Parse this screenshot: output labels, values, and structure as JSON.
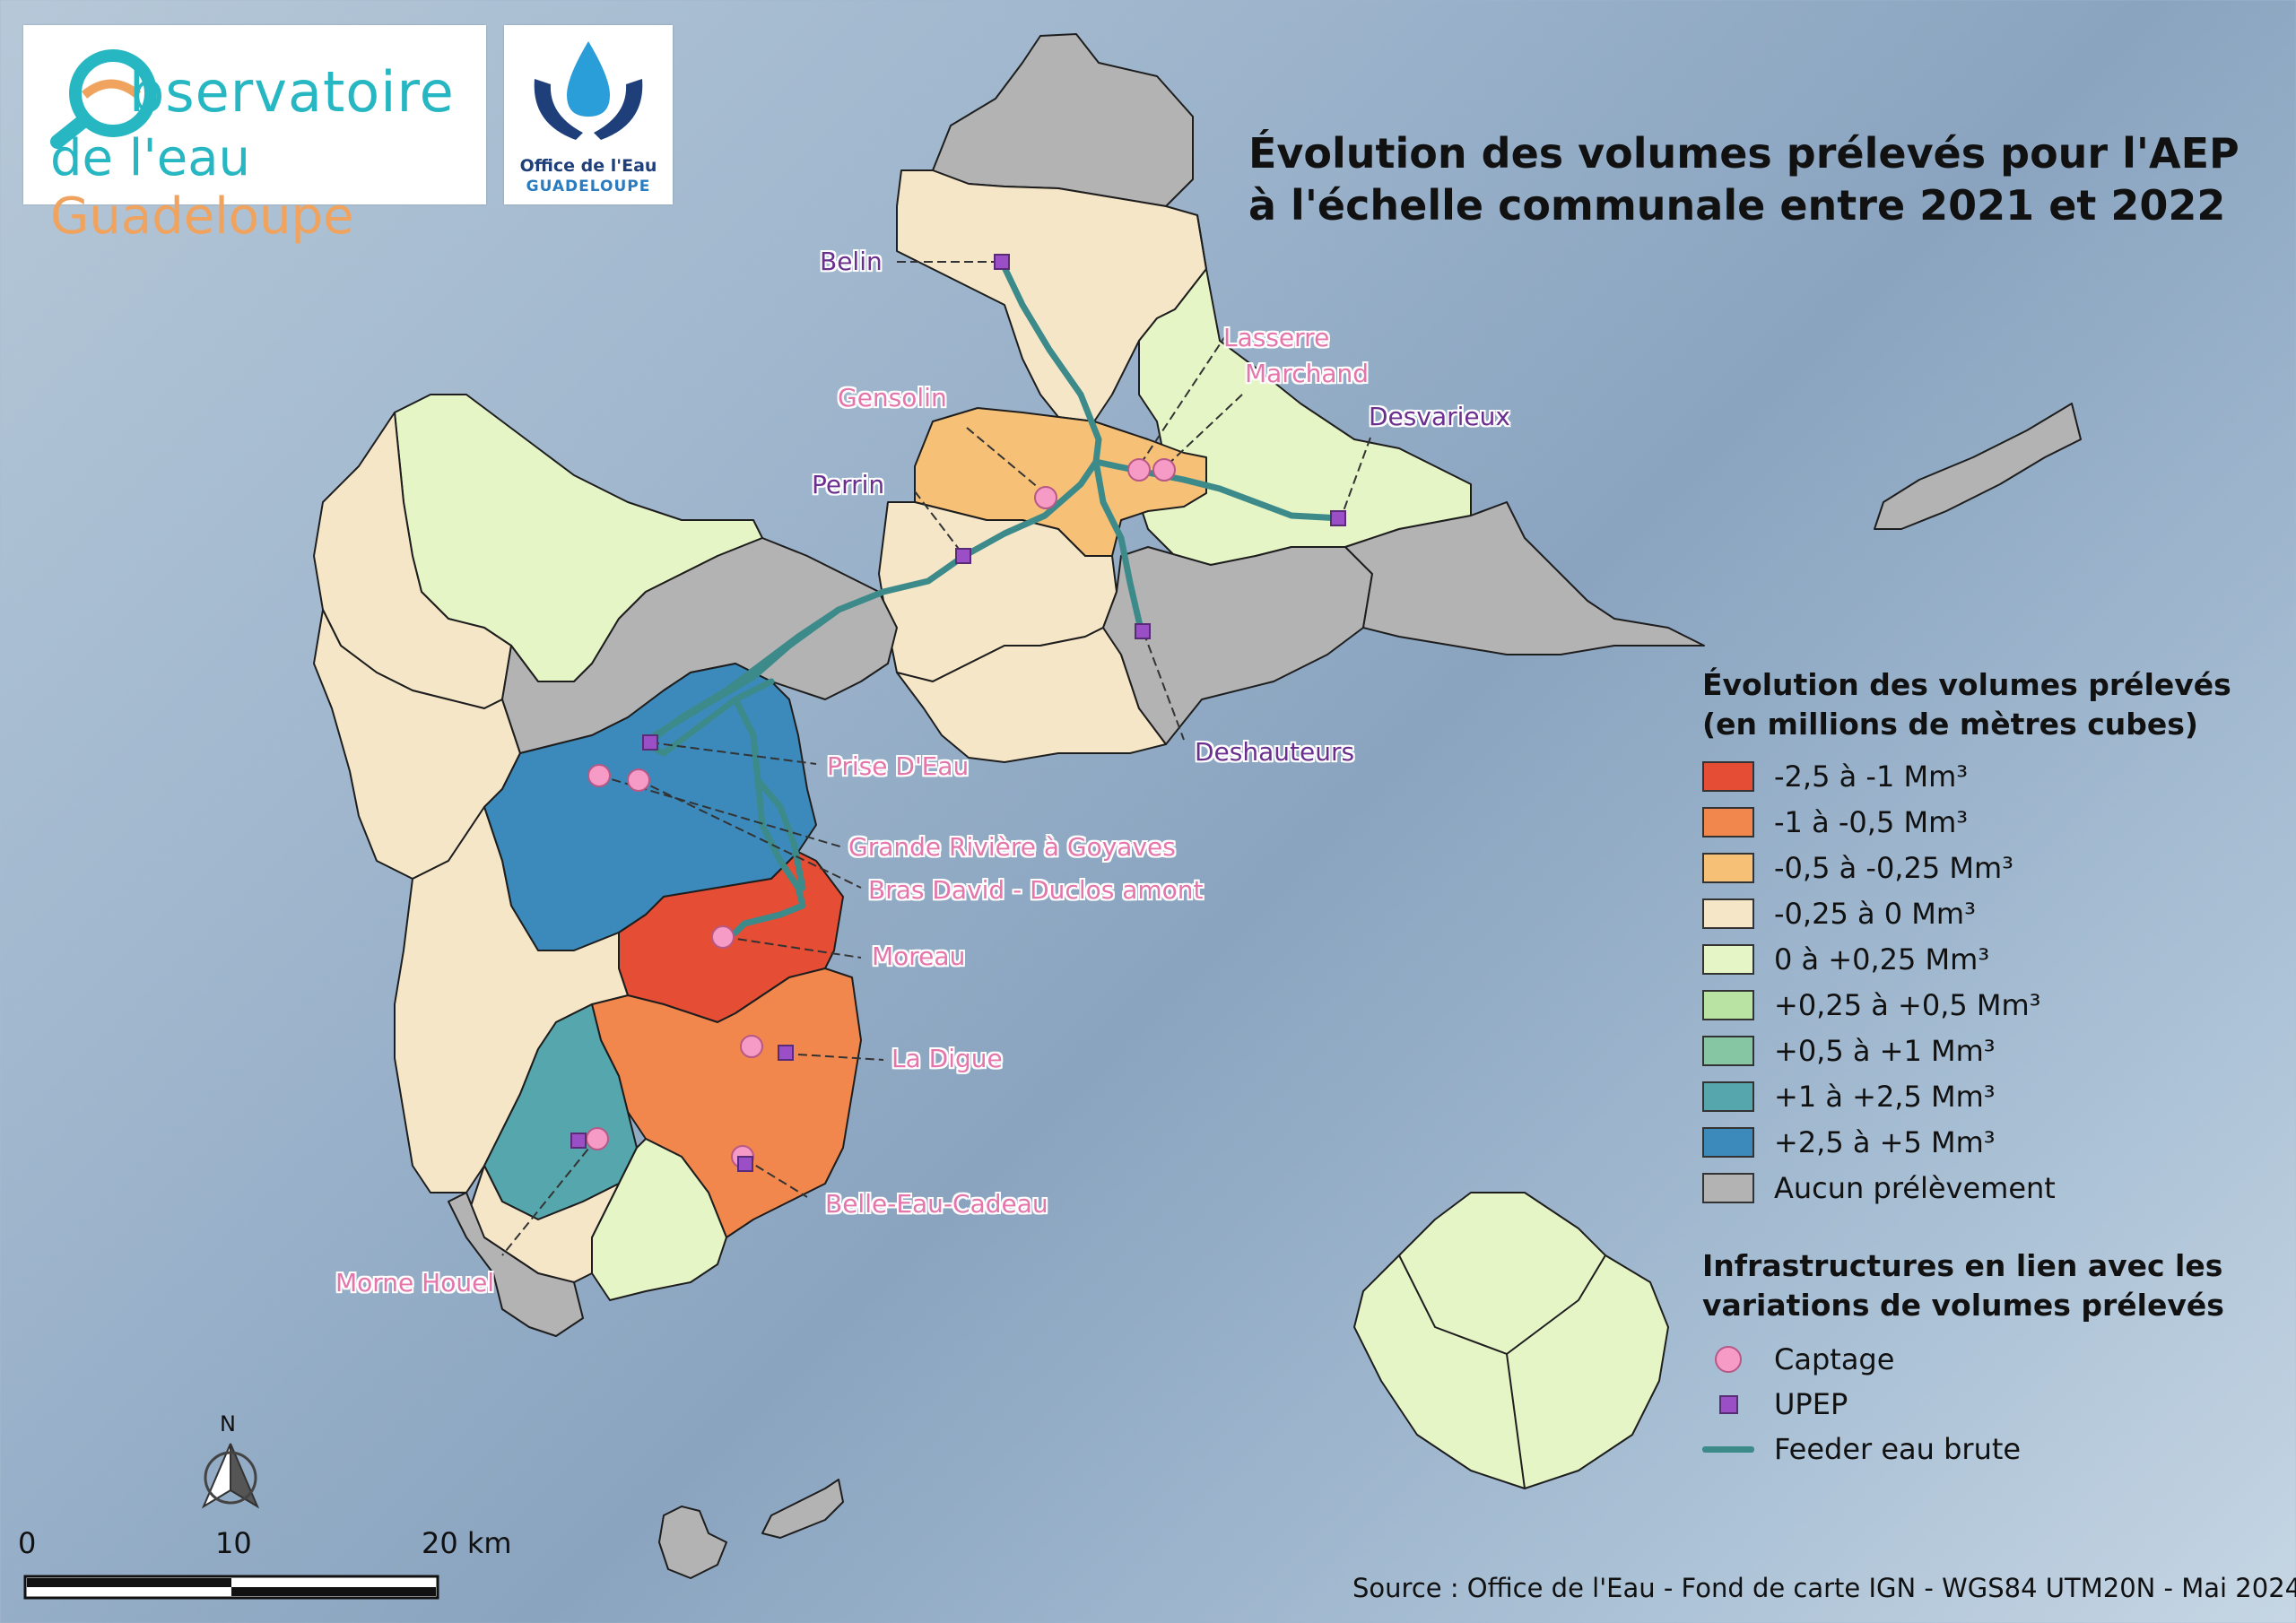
{
  "title": {
    "line1": "Évolution des volumes prélevés pour l'AEP",
    "line2": "à l'échelle communale entre 2021 et 2022"
  },
  "logos": {
    "observatoire": {
      "line1": "bservatoire",
      "line2_part1": "de l'eau ",
      "line2_part2": "Guadeloupe"
    },
    "office": {
      "line1": "Office de l'Eau",
      "line2": "GUADELOUPE"
    }
  },
  "legend_volumes": {
    "title_line1": "Évolution des volumes prélevés",
    "title_line2": "(en millions de mètres cubes)",
    "classes": [
      {
        "label": "-2,5 à -1 Mm³",
        "color": "#e54d35"
      },
      {
        "label": "-1 à -0,5 Mm³",
        "color": "#f2874d"
      },
      {
        "label": "-0,5 à -0,25 Mm³",
        "color": "#f6c077"
      },
      {
        "label": "-0,25 à 0 Mm³",
        "color": "#f5e6c8"
      },
      {
        "label": "0 à +0,25 Mm³",
        "color": "#e6f5c6"
      },
      {
        "label": "+0,25 à +0,5 Mm³",
        "color": "#b9e3a2"
      },
      {
        "label": "+0,5 à +1 Mm³",
        "color": "#86c6a2"
      },
      {
        "label": "+1 à +2,5 Mm³",
        "color": "#56a6ad"
      },
      {
        "label": "+2,5 à +5 Mm³",
        "color": "#3b8abb"
      },
      {
        "label": "Aucun prélèvement",
        "color": "#b3b3b3"
      }
    ]
  },
  "legend_infra": {
    "title_line1": "Infrastructures en lien avec les",
    "title_line2": "variations de volumes prélevés",
    "items": [
      {
        "label": "Captage",
        "symbol": "pink-circle",
        "color": "#f59bc6"
      },
      {
        "label": "UPEP",
        "symbol": "purple-square",
        "color": "#9b4fc6"
      },
      {
        "label": "Feeder eau brute",
        "symbol": "teal-line",
        "color": "#3d8a8a"
      }
    ]
  },
  "labels": {
    "belin": "Belin",
    "lasserre": "Lasserre",
    "marchand": "Marchand",
    "gensolin": "Gensolin",
    "desvarieux": "Desvarieux",
    "perrin": "Perrin",
    "deshauteurs": "Deshauteurs",
    "prise_deau": "Prise D'Eau",
    "grande_riviere": "Grande Rivière à Goyaves",
    "bras_david": "Bras David - Duclos amont",
    "moreau": "Moreau",
    "la_digue": "La Digue",
    "belle_eau": "Belle-Eau-Cadeau",
    "morne_houel": "Morne Houel"
  },
  "north_arrow": {
    "label": "N",
    "icon": "north-arrow-icon"
  },
  "scale_bar": {
    "ticks": [
      "0",
      "10",
      "20 km"
    ]
  },
  "source": "Source : Office de l'Eau - Fond de carte IGN - WGS84 UTM20N - Mai 2024"
}
